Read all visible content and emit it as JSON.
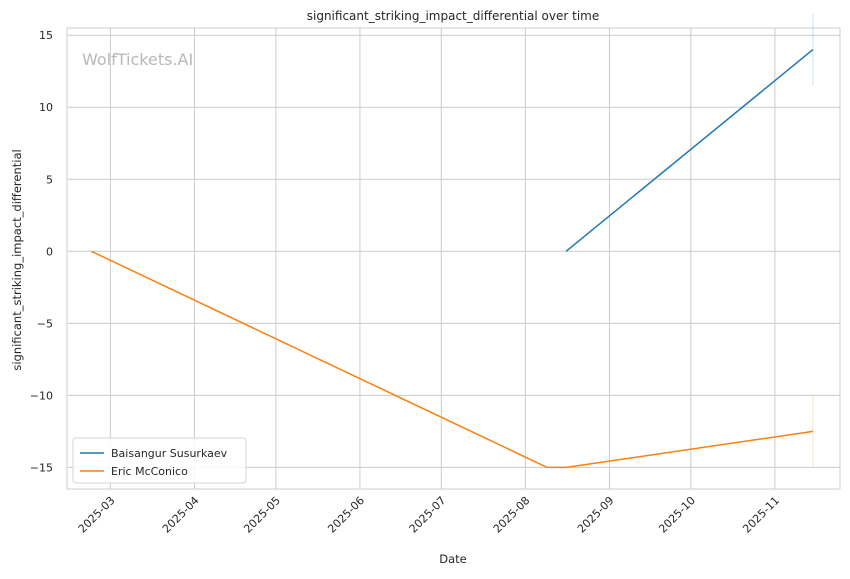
{
  "chart_data": {
    "type": "line",
    "title": "significant_striking_impact_differential over time",
    "xlabel": "Date",
    "ylabel": "significant_striking_impact_differential",
    "watermark": "WolfTickets.AI",
    "xlim": [
      "2025-02-13",
      "2025-11-25"
    ],
    "ylim": [
      -16.5,
      15.5
    ],
    "x_ticks": [
      "2025-03",
      "2025-04",
      "2025-05",
      "2025-06",
      "2025-07",
      "2025-08",
      "2025-09",
      "2025-10",
      "2025-11"
    ],
    "y_ticks": [
      15,
      10,
      5,
      0,
      -5,
      -10,
      -15
    ],
    "y_tick_labels": [
      "15",
      "10",
      "5",
      "0",
      "−5",
      "−10",
      "−15"
    ],
    "grid": true,
    "legend_position": "lower-left",
    "series": [
      {
        "name": "Baisangur Susurkaev",
        "color": "#1f77b4",
        "points": [
          {
            "x": "2025-08-16",
            "y": 0
          },
          {
            "x": "2025-11-15",
            "y": 14
          }
        ]
      },
      {
        "name": "Eric McConico",
        "color": "#ff7f0e",
        "points": [
          {
            "x": "2025-02-22",
            "y": 0
          },
          {
            "x": "2025-08-09",
            "y": -15
          },
          {
            "x": "2025-08-16",
            "y": -15
          },
          {
            "x": "2025-11-15",
            "y": -12.5
          }
        ]
      }
    ]
  }
}
